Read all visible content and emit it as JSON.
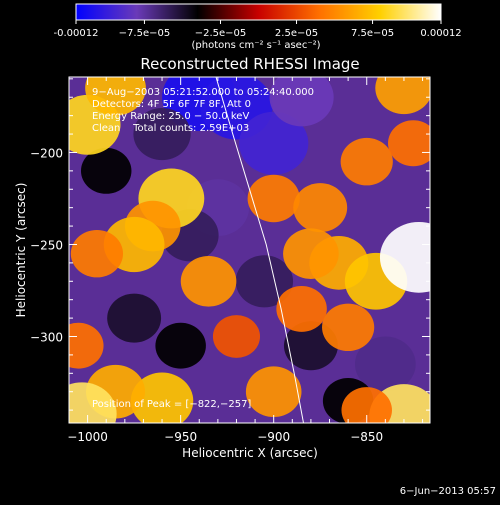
{
  "chart_data": {
    "type": "heatmap",
    "title": "Reconstructed RHESSI Image",
    "xlabel": "Heliocentric X (arcsec)",
    "ylabel": "Heliocentric Y (arcsec)",
    "xlim": [
      -1010,
      -816
    ],
    "ylim": [
      -347,
      -159
    ],
    "x_ticks": [
      -1000,
      -950,
      -900,
      -850
    ],
    "x_tick_labels": [
      "−1000",
      "−950",
      "−900",
      "−850"
    ],
    "y_ticks": [
      -200,
      -250,
      -300
    ],
    "y_tick_labels": [
      "−200",
      "−250",
      "−300"
    ],
    "colorbar": {
      "range": [
        -0.00012,
        0.00012
      ],
      "colormap": [
        "#0000ff",
        "#6a3ab8",
        "#000000",
        "#c80000",
        "#ff7000",
        "#ffd000",
        "#ffffff"
      ],
      "tick_labels": [
        "-0.00012",
        "−7.5e−05",
        "−2.5e−05",
        "2.5e−05",
        "7.5e−05",
        "0.00012"
      ],
      "tick_values": [
        -0.00012,
        -7.5e-05,
        -2.5e-05,
        2.5e-05,
        7.5e-05,
        0.00012
      ],
      "unit_label": "(photons cm⁻² s⁻¹ asec⁻²)"
    },
    "annotations": [
      "9−Aug−2003 05:21:52.000 to 05:24:40.000",
      "Detectors: 4F 5F 6F 7F 8F, Att 0",
      "Energy Range: 25.0 − 50.0 keV",
      "Clean    Total counts: 2.59E+03"
    ],
    "peak_label": "Position of Peak = [−822,−257]",
    "peak": [
      -822,
      -257
    ],
    "limb_curve": {
      "x": [
        -931,
        -922,
        -913,
        -904,
        -896,
        -889,
        -884
      ],
      "y": [
        -159,
        -190,
        -220,
        -250,
        -285,
        -320,
        -347
      ]
    },
    "blobs": [
      {
        "x": -940,
        "y": -170,
        "v": -0.00011
      },
      {
        "x": -920,
        "y": -175,
        "v": -0.000105
      },
      {
        "x": -900,
        "y": -195,
        "v": -9.5e-05
      },
      {
        "x": -885,
        "y": -170,
        "v": -8e-05
      },
      {
        "x": -960,
        "y": -190,
        "v": -6e-05
      },
      {
        "x": -930,
        "y": -230,
        "v": -7.5e-05
      },
      {
        "x": -945,
        "y": -245,
        "v": -6e-05
      },
      {
        "x": -905,
        "y": -270,
        "v": -6e-05
      },
      {
        "x": -990,
        "y": -210,
        "v": -4e-05
      },
      {
        "x": -975,
        "y": -290,
        "v": -5e-05
      },
      {
        "x": -880,
        "y": -305,
        "v": -5e-05
      },
      {
        "x": -840,
        "y": -315,
        "v": -7e-05
      },
      {
        "x": -860,
        "y": -335,
        "v": -4e-05
      },
      {
        "x": -950,
        "y": -305,
        "v": -4e-05
      },
      {
        "x": -1000,
        "y": -185,
        "v": 8.5e-05
      },
      {
        "x": -985,
        "y": -165,
        "v": 7e-05
      },
      {
        "x": -955,
        "y": -225,
        "v": 8.5e-05
      },
      {
        "x": -965,
        "y": -240,
        "v": 5.5e-05
      },
      {
        "x": -975,
        "y": -250,
        "v": 7e-05
      },
      {
        "x": -995,
        "y": -255,
        "v": 4.5e-05
      },
      {
        "x": -935,
        "y": -270,
        "v": 5.5e-05
      },
      {
        "x": -900,
        "y": -225,
        "v": 4.5e-05
      },
      {
        "x": -875,
        "y": -230,
        "v": 5e-05
      },
      {
        "x": -865,
        "y": -260,
        "v": 6.5e-05
      },
      {
        "x": -880,
        "y": -255,
        "v": 5.5e-05
      },
      {
        "x": -845,
        "y": -270,
        "v": 7.5e-05
      },
      {
        "x": -822,
        "y": -257,
        "v": 0.00012
      },
      {
        "x": -850,
        "y": -205,
        "v": 4.5e-05
      },
      {
        "x": -830,
        "y": -165,
        "v": 6e-05
      },
      {
        "x": -825,
        "y": -195,
        "v": 4e-05
      },
      {
        "x": -860,
        "y": -295,
        "v": 4.5e-05
      },
      {
        "x": -885,
        "y": -285,
        "v": 4e-05
      },
      {
        "x": -960,
        "y": -335,
        "v": 7.5e-05
      },
      {
        "x": -985,
        "y": -330,
        "v": 6.5e-05
      },
      {
        "x": -1003,
        "y": -342,
        "v": 9.5e-05
      },
      {
        "x": -900,
        "y": -330,
        "v": 5.5e-05
      },
      {
        "x": -830,
        "y": -343,
        "v": 9.5e-05
      },
      {
        "x": -850,
        "y": -340,
        "v": 4e-05
      },
      {
        "x": -1005,
        "y": -305,
        "v": 4e-05
      },
      {
        "x": -920,
        "y": -300,
        "v": 3e-05
      }
    ]
  },
  "footer_date": "6−Jun−2013 05:57"
}
